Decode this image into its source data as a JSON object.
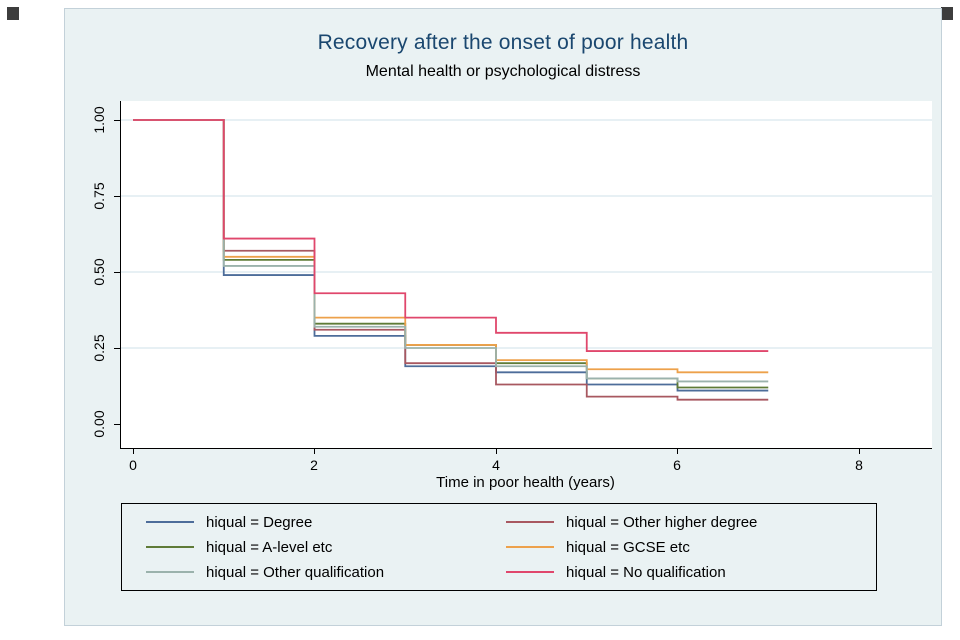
{
  "theme": {
    "page_bg": "#ffffff",
    "frame_bg": "#eaf2f3",
    "frame_border": "#c3d1d9",
    "plot_bg": "#ffffff",
    "grid_color": "#cfe2ea",
    "axis_color": "#000000",
    "title_color": "#1a476f",
    "text_color": "#000000",
    "legend_border": "#000000"
  },
  "chart_data": {
    "type": "line",
    "subtype": "kaplan-meier-step",
    "title": "Recovery after the onset of poor health",
    "subtitle": "Mental health or psychological distress",
    "xlabel": "Time in poor health (years)",
    "ylabel": "",
    "xlim": [
      0,
      8
    ],
    "ylim": [
      0,
      1
    ],
    "xticks": [
      0,
      2,
      4,
      6,
      8
    ],
    "xtick_labels": [
      "0",
      "2",
      "4",
      "6",
      "8"
    ],
    "yticks": [
      0.0,
      0.25,
      0.5,
      0.75,
      1.0
    ],
    "ytick_labels": [
      "0.00",
      "0.25",
      "0.50",
      "0.75",
      "1.00"
    ],
    "grid": "horizontal",
    "grid_values": [
      0.25,
      0.5,
      0.75,
      1.0
    ],
    "grid_color": "#cfe2ea",
    "legend_position": "bottom",
    "legend_columns": 2,
    "x_intervals": [
      0,
      1,
      2,
      3,
      4,
      5,
      6,
      7
    ],
    "series": [
      {
        "name": "hiqual = Degree",
        "color": "#4d6d9a",
        "values": [
          1.0,
          0.49,
          0.29,
          0.19,
          0.17,
          0.13,
          0.11
        ]
      },
      {
        "name": "hiqual = Other higher degree",
        "color": "#a85860",
        "values": [
          1.0,
          0.57,
          0.31,
          0.2,
          0.13,
          0.09,
          0.08
        ]
      },
      {
        "name": "hiqual = A-level etc",
        "color": "#5f7b37",
        "values": [
          1.0,
          0.54,
          0.33,
          0.26,
          0.2,
          0.15,
          0.12
        ]
      },
      {
        "name": "hiqual = GCSE etc",
        "color": "#eda14b",
        "values": [
          1.0,
          0.55,
          0.35,
          0.26,
          0.21,
          0.18,
          0.17
        ]
      },
      {
        "name": "hiqual = Other qualification",
        "color": "#9bb2ac",
        "values": [
          1.0,
          0.52,
          0.32,
          0.25,
          0.19,
          0.15,
          0.14
        ]
      },
      {
        "name": "hiqual = No qualification",
        "color": "#e0476c",
        "values": [
          1.0,
          0.61,
          0.43,
          0.35,
          0.3,
          0.24,
          0.24
        ]
      }
    ]
  }
}
